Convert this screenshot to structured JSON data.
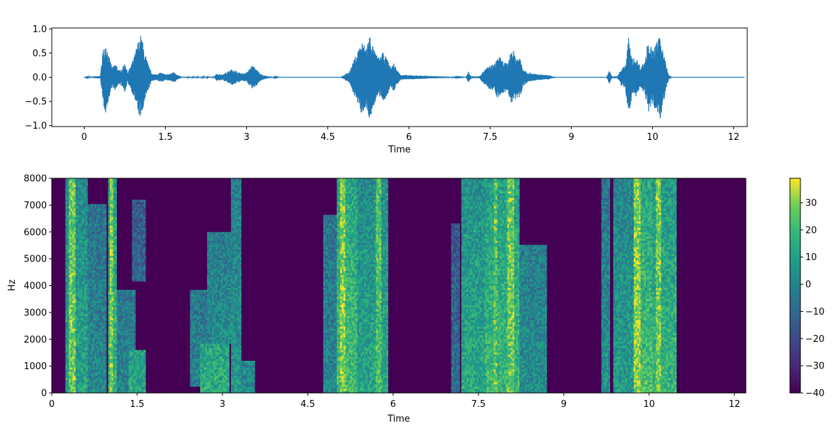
{
  "chart_data": [
    {
      "type": "line",
      "title": "",
      "xlabel": "Time",
      "ylabel": "",
      "xlim": [
        -0.6,
        12.25
      ],
      "ylim": [
        -1.02,
        1.02
      ],
      "x_ticks": [
        0,
        1.5,
        3,
        4.5,
        6,
        7.5,
        9,
        10.5,
        12
      ],
      "x_tick_labels": [
        "0",
        "1.5",
        "3",
        "4.5",
        "6",
        "7.5",
        "9",
        "10",
        "12"
      ],
      "y_ticks": [
        1.0,
        0.5,
        0.0,
        -0.5,
        -1.0
      ],
      "y_tick_labels": [
        "1.0",
        "0.5",
        "0.0",
        "−0.5",
        "−1.0"
      ],
      "grid": false,
      "series": [
        {
          "color": "#1f77b4",
          "x_range": [
            0,
            12.2
          ],
          "envelope": [
            [
              0.0,
              0.0
            ],
            [
              0.3,
              0.03
            ],
            [
              0.34,
              0.55
            ],
            [
              0.4,
              0.75
            ],
            [
              0.46,
              0.42
            ],
            [
              0.52,
              0.2
            ],
            [
              0.58,
              0.3
            ],
            [
              0.64,
              0.14
            ],
            [
              0.7,
              0.2
            ],
            [
              0.76,
              0.32
            ],
            [
              0.8,
              0.1
            ],
            [
              0.86,
              0.25
            ],
            [
              0.92,
              0.42
            ],
            [
              0.98,
              0.7
            ],
            [
              1.05,
              0.9
            ],
            [
              1.12,
              0.52
            ],
            [
              1.18,
              0.28
            ],
            [
              1.24,
              0.1
            ],
            [
              1.3,
              0.06
            ],
            [
              1.42,
              0.1
            ],
            [
              1.5,
              0.06
            ],
            [
              1.6,
              0.08
            ],
            [
              1.66,
              0.13
            ],
            [
              1.72,
              0.05
            ],
            [
              1.8,
              0.01
            ],
            [
              2.4,
              0.01
            ],
            [
              2.45,
              0.08
            ],
            [
              2.55,
              0.06
            ],
            [
              2.65,
              0.12
            ],
            [
              2.75,
              0.18
            ],
            [
              2.82,
              0.12
            ],
            [
              2.92,
              0.08
            ],
            [
              3.0,
              0.1
            ],
            [
              3.1,
              0.25
            ],
            [
              3.18,
              0.18
            ],
            [
              3.24,
              0.09
            ],
            [
              3.3,
              0.05
            ],
            [
              3.4,
              0.02
            ],
            [
              3.6,
              0.0
            ],
            [
              4.75,
              0.0
            ],
            [
              4.8,
              0.05
            ],
            [
              4.9,
              0.12
            ],
            [
              4.98,
              0.35
            ],
            [
              5.05,
              0.55
            ],
            [
              5.12,
              0.75
            ],
            [
              5.2,
              0.65
            ],
            [
              5.28,
              0.9
            ],
            [
              5.36,
              0.55
            ],
            [
              5.44,
              0.4
            ],
            [
              5.52,
              0.52
            ],
            [
              5.6,
              0.38
            ],
            [
              5.66,
              0.22
            ],
            [
              5.72,
              0.3
            ],
            [
              5.78,
              0.15
            ],
            [
              5.86,
              0.05
            ],
            [
              7.05,
              0.0
            ],
            [
              7.1,
              0.12
            ],
            [
              7.15,
              0.02
            ],
            [
              7.3,
              0.02
            ],
            [
              7.38,
              0.14
            ],
            [
              7.48,
              0.24
            ],
            [
              7.58,
              0.28
            ],
            [
              7.65,
              0.48
            ],
            [
              7.72,
              0.35
            ],
            [
              7.82,
              0.28
            ],
            [
              7.9,
              0.62
            ],
            [
              7.98,
              0.44
            ],
            [
              8.06,
              0.42
            ],
            [
              8.1,
              0.2
            ],
            [
              8.2,
              0.1
            ],
            [
              8.3,
              0.08
            ],
            [
              8.4,
              0.06
            ],
            [
              8.5,
              0.05
            ],
            [
              8.6,
              0.04
            ],
            [
              8.7,
              0.0
            ],
            [
              9.65,
              0.0
            ],
            [
              9.7,
              0.15
            ],
            [
              9.75,
              0.02
            ],
            [
              9.85,
              0.02
            ],
            [
              9.92,
              0.18
            ],
            [
              10.0,
              0.25
            ],
            [
              10.06,
              0.85
            ],
            [
              10.12,
              0.4
            ],
            [
              10.2,
              0.4
            ],
            [
              10.28,
              0.22
            ],
            [
              10.36,
              0.35
            ],
            [
              10.42,
              0.8
            ],
            [
              10.5,
              0.55
            ],
            [
              10.56,
              0.7
            ],
            [
              10.64,
              0.85
            ],
            [
              10.72,
              0.5
            ],
            [
              10.76,
              0.2
            ],
            [
              10.8,
              0.05
            ],
            [
              10.85,
              0.0
            ],
            [
              12.2,
              0.0
            ]
          ]
        }
      ]
    },
    {
      "type": "heatmap",
      "title": "",
      "xlabel": "Time",
      "ylabel": "Hz",
      "xlim": [
        0,
        12.2
      ],
      "ylim": [
        0,
        8000
      ],
      "x_ticks": [
        0,
        1.5,
        3,
        4.5,
        6,
        7.5,
        9,
        10.5,
        12
      ],
      "x_tick_labels": [
        "0",
        "1.5",
        "3",
        "4.5",
        "6",
        "7.5",
        "9",
        "10",
        "12"
      ],
      "y_ticks": [
        0,
        1000,
        2000,
        3000,
        4000,
        5000,
        6000,
        7000,
        8000
      ],
      "y_tick_labels": [
        "0",
        "1000",
        "2000",
        "3000",
        "4000",
        "5000",
        "6000",
        "7000",
        "8000"
      ],
      "colormap": "viridis",
      "value_range_db": [
        -40,
        39
      ],
      "background_db": -40,
      "colorbar": {
        "ticks": [
          30,
          20,
          10,
          0,
          -10,
          -20,
          -30,
          -40
        ],
        "tick_labels": [
          "30",
          "20",
          "10",
          "0",
          "−10",
          "−20",
          "−30",
          "−40"
        ]
      },
      "energy_regions": [
        {
          "t": [
            0.22,
            0.62
          ],
          "f": [
            0,
            8000
          ],
          "level_db": 12
        },
        {
          "t": [
            0.62,
            0.95
          ],
          "f": [
            0,
            7000
          ],
          "level_db": 2
        },
        {
          "t": [
            0.98,
            1.12
          ],
          "f": [
            0,
            8000
          ],
          "level_db": 20
        },
        {
          "t": [
            1.12,
            1.45
          ],
          "f": [
            0,
            3800
          ],
          "level_db": 0
        },
        {
          "t": [
            1.35,
            1.65
          ],
          "f": [
            0,
            1600
          ],
          "level_db": 12
        },
        {
          "t": [
            1.4,
            1.65
          ],
          "f": [
            4100,
            7200
          ],
          "level_db": -5
        },
        {
          "t": [
            2.4,
            2.7
          ],
          "f": [
            200,
            3800
          ],
          "level_db": 0
        },
        {
          "t": [
            2.6,
            3.1
          ],
          "f": [
            0,
            1800
          ],
          "level_db": 15
        },
        {
          "t": [
            2.7,
            3.15
          ],
          "f": [
            1800,
            6000
          ],
          "level_db": 5
        },
        {
          "t": [
            3.12,
            3.3
          ],
          "f": [
            0,
            8000
          ],
          "level_db": 8
        },
        {
          "t": [
            3.3,
            3.55
          ],
          "f": [
            0,
            1200
          ],
          "level_db": 3
        },
        {
          "t": [
            4.75,
            5.0
          ],
          "f": [
            0,
            6600
          ],
          "level_db": 2
        },
        {
          "t": [
            5.0,
            5.35
          ],
          "f": [
            0,
            8000
          ],
          "level_db": 22
        },
        {
          "t": [
            5.35,
            5.65
          ],
          "f": [
            0,
            8000
          ],
          "level_db": 12
        },
        {
          "t": [
            5.65,
            5.9
          ],
          "f": [
            0,
            8000
          ],
          "level_db": 14
        },
        {
          "t": [
            7.0,
            7.15
          ],
          "f": [
            0,
            6300
          ],
          "level_db": -8
        },
        {
          "t": [
            7.2,
            7.6
          ],
          "f": [
            0,
            8000
          ],
          "level_db": 14
        },
        {
          "t": [
            7.6,
            8.2
          ],
          "f": [
            0,
            8000
          ],
          "level_db": 20
        },
        {
          "t": [
            8.2,
            8.7
          ],
          "f": [
            0,
            5500
          ],
          "level_db": 4
        },
        {
          "t": [
            9.65,
            9.78
          ],
          "f": [
            0,
            8000
          ],
          "level_db": 5
        },
        {
          "t": [
            9.85,
            10.2
          ],
          "f": [
            0,
            8000
          ],
          "level_db": 10
        },
        {
          "t": [
            10.2,
            10.55
          ],
          "f": [
            0,
            8000
          ],
          "level_db": 22
        },
        {
          "t": [
            10.55,
            10.95
          ],
          "f": [
            0,
            8000
          ],
          "level_db": 18
        }
      ],
      "bright_bands": [
        {
          "t": [
            0.3,
            0.42
          ],
          "level_db": 30
        },
        {
          "t": [
            1.0,
            1.08
          ],
          "level_db": 32
        },
        {
          "t": [
            5.04,
            5.14
          ],
          "level_db": 33
        },
        {
          "t": [
            5.7,
            5.78
          ],
          "level_db": 26
        },
        {
          "t": [
            7.75,
            7.82
          ],
          "level_db": 28
        },
        {
          "t": [
            8.0,
            8.12
          ],
          "level_db": 30
        },
        {
          "t": [
            10.22,
            10.32
          ],
          "level_db": 33
        },
        {
          "t": [
            10.6,
            10.7
          ],
          "level_db": 31
        }
      ]
    }
  ]
}
